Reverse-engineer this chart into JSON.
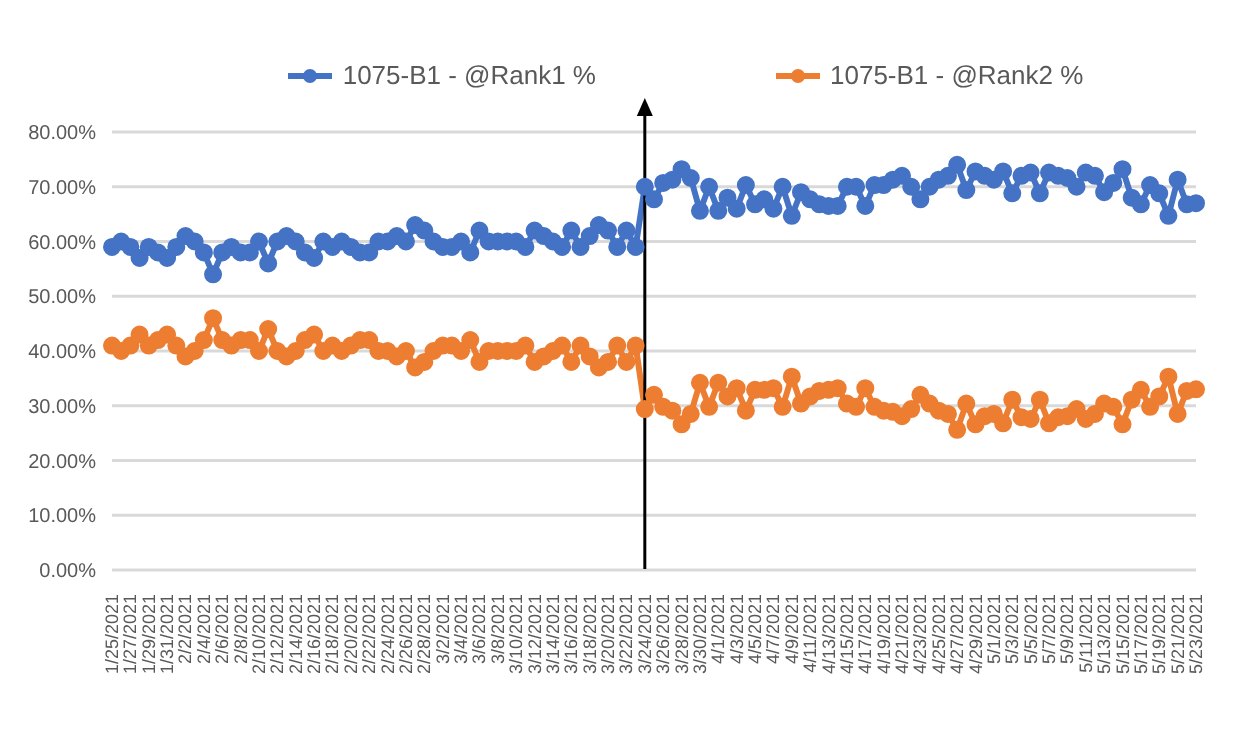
{
  "chart_data": {
    "type": "line",
    "categories": [
      "1/25/2021",
      null,
      "1/27/2021",
      null,
      "1/29/2021",
      null,
      "1/31/2021",
      null,
      "2/2/2021",
      null,
      "2/4/2021",
      null,
      "2/6/2021",
      null,
      "2/8/2021",
      null,
      "2/10/2021",
      null,
      "2/12/2021",
      null,
      "2/14/2021",
      null,
      "2/16/2021",
      null,
      "2/18/2021",
      null,
      "2/20/2021",
      null,
      "2/22/2021",
      null,
      "2/24/2021",
      null,
      "2/26/2021",
      null,
      "2/28/2021",
      null,
      "3/2/2021",
      null,
      "3/4/2021",
      null,
      "3/6/2021",
      null,
      "3/8/2021",
      null,
      "3/10/2021",
      null,
      "3/12/2021",
      null,
      "3/14/2021",
      null,
      "3/16/2021",
      null,
      "3/18/2021",
      null,
      "3/20/2021",
      null,
      "3/22/2021",
      null,
      "3/24/2021",
      null,
      "3/26/2021",
      null,
      "3/28/2021",
      null,
      "3/30/2021",
      null,
      "4/1/2021",
      null,
      "4/3/2021",
      null,
      "4/5/2021",
      null,
      "4/7/2021",
      null,
      "4/9/2021",
      null,
      "4/11/2021",
      null,
      "4/13/2021",
      null,
      "4/15/2021",
      null,
      "4/17/2021",
      null,
      "4/19/2021",
      null,
      "4/21/2021",
      null,
      "4/23/2021",
      null,
      "4/25/2021",
      null,
      "4/27/2021",
      null,
      "4/29/2021",
      null,
      "5/1/2021",
      null,
      "5/3/2021",
      null,
      "5/5/2021",
      null,
      "5/7/2021",
      null,
      "5/9/2021",
      null,
      "5/11/2021",
      null,
      "5/13/2021",
      null,
      "5/15/2021",
      null,
      "5/17/2021",
      null,
      "5/19/2021",
      null,
      "5/21/2021",
      null,
      "5/23/2021"
    ],
    "series": [
      {
        "name": "1075-B1 - @Rank1 %",
        "color": "#4472c4",
        "values": [
          59,
          60,
          59,
          57,
          59,
          58,
          57,
          59,
          61,
          60,
          58,
          54,
          58,
          59,
          58,
          58,
          60,
          56,
          60,
          61,
          60,
          58,
          57,
          60,
          59,
          60,
          59,
          58,
          58,
          60,
          60,
          61,
          60,
          63,
          62,
          60,
          59,
          59,
          60,
          58,
          62,
          60,
          60,
          60,
          60,
          59,
          62,
          61,
          60,
          59,
          62,
          59,
          61,
          63,
          62,
          59,
          62,
          59,
          70,
          67.7,
          70.7,
          71.3,
          73.2,
          71.6,
          65.6,
          70,
          65.6,
          68,
          66,
          70.3,
          66.8,
          67.7,
          66,
          70,
          64.7,
          69,
          67.7,
          66.8,
          66.5,
          66.5,
          70,
          70,
          66.5,
          70.3,
          70.3,
          71.3,
          72,
          70,
          67.7,
          70,
          71.3,
          72,
          74,
          69.4,
          72.8,
          72,
          71.3,
          72.8,
          68.8,
          72,
          72.6,
          68.8,
          72.6,
          72,
          71.6,
          70,
          72.6,
          72,
          69,
          70.7,
          73.2,
          68,
          66.8,
          70.3,
          68.8,
          64.7,
          71.3,
          66.8,
          67
        ]
      },
      {
        "name": "1075-B1 - @Rank2 %",
        "color": "#ed7d31",
        "values": [
          41,
          40,
          41,
          43,
          41,
          42,
          43,
          41,
          39,
          40,
          42,
          46,
          42,
          41,
          42,
          42,
          40,
          44,
          40,
          39,
          40,
          42,
          43,
          40,
          41,
          40,
          41,
          42,
          42,
          40,
          40,
          39,
          40,
          37,
          38,
          40,
          41,
          41,
          40,
          42,
          38,
          40,
          40,
          40,
          40,
          41,
          38,
          39,
          40,
          41,
          38,
          41,
          39,
          37,
          38,
          41,
          38,
          41,
          29.4,
          32,
          29.8,
          29.1,
          26.6,
          28.5,
          34.2,
          29.8,
          34.2,
          31.7,
          33.2,
          29.1,
          32.9,
          32.9,
          33.2,
          29.8,
          35.3,
          30.4,
          31.7,
          32.7,
          32.9,
          33.2,
          30.4,
          29.8,
          33.2,
          29.8,
          29.1,
          28.9,
          28.1,
          29.4,
          32,
          30.4,
          29.1,
          28.5,
          25.6,
          30.4,
          26.6,
          28.1,
          28.5,
          26.8,
          31.1,
          27.9,
          27.6,
          31.1,
          26.8,
          27.9,
          28.1,
          29.4,
          27.6,
          28.5,
          30.4,
          29.8,
          26.6,
          31.1,
          32.9,
          29.8,
          31.7,
          35.3,
          28.5,
          32.7,
          33
        ]
      }
    ],
    "ylim": [
      0,
      80
    ],
    "yticks": [
      {
        "value": 0,
        "label": "0.00%"
      },
      {
        "value": 10,
        "label": "10.00%"
      },
      {
        "value": 20,
        "label": "20.00%"
      },
      {
        "value": 30,
        "label": "30.00%"
      },
      {
        "value": 40,
        "label": "40.00%"
      },
      {
        "value": 50,
        "label": "50.00%"
      },
      {
        "value": 60,
        "label": "60.00%"
      },
      {
        "value": 70,
        "label": "70.00%"
      },
      {
        "value": 80,
        "label": "80.00%"
      }
    ],
    "ref_lines": [
      {
        "axis": "x",
        "value": "3/24/2021",
        "color": "#000000"
      }
    ],
    "grid": "y",
    "legend": "top",
    "marker": "circle",
    "line_style": "solid"
  }
}
